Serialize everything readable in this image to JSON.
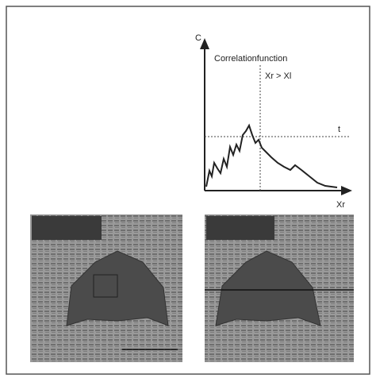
{
  "figure": {
    "plot": {
      "y_axis_label": "C",
      "title": "Correlationfunction",
      "condition": "Xr > Xl",
      "threshold_label": "t",
      "x_axis_label": "Xr"
    }
  }
}
